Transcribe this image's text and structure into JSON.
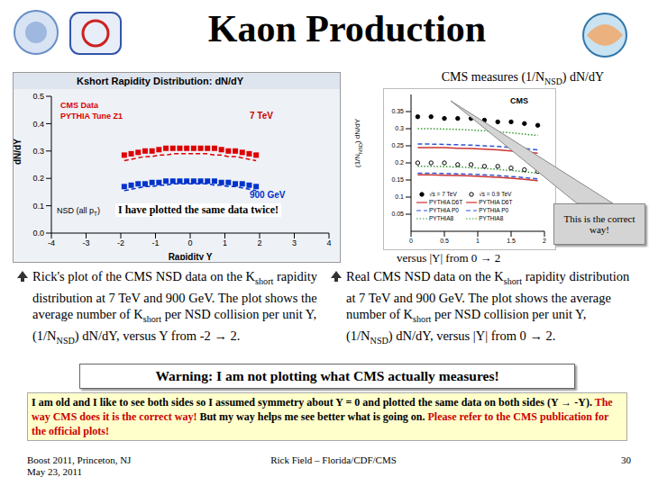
{
  "slide": {
    "title": "Kaon Production",
    "top_right": [
      {
        "t": "CMS measures (1/N"
      },
      {
        "sub": "NSD"
      },
      {
        "t": ") dN/dY"
      }
    ],
    "overlay_note": "I have plotted the same data twice!",
    "callout": "This is the correct way!",
    "right_caption": "versus |Y| from 0 → 2",
    "bullets": [
      [
        {
          "t": "Rick's plot of the CMS NSD data on the K"
        },
        {
          "sub": "short"
        },
        {
          "t": " rapidity distribution at 7 TeV and 900 GeV. The plot shows the average number of K"
        },
        {
          "sub": "short"
        },
        {
          "t": " per NSD collision per unit Y, (1/N"
        },
        {
          "sub": "NSD"
        },
        {
          "t": ") dN/dY, versus Y from -2 → 2."
        }
      ],
      [
        {
          "t": "Real CMS NSD data on the K"
        },
        {
          "sub": "short"
        },
        {
          "t": " rapidity distribution at 7 TeV and 900 GeV. The plot shows the average number of K"
        },
        {
          "sub": "short"
        },
        {
          "t": " per NSD collision per unit Y, (1/N"
        },
        {
          "sub": "NSD"
        },
        {
          "t": ") dN/dY, versus |Y| from 0 → 2."
        }
      ]
    ],
    "warning": "Warning: I am not plotting what CMS actually measures!",
    "note": [
      {
        "t": "I am old and I like to see both sides so I assumed symmetry about Y = 0 and plotted the same data on both sides (Y → -Y). ",
        "color": "#000000"
      },
      {
        "t": "The way CMS does it is the correct way! ",
        "color": "#cc0000"
      },
      {
        "t": "But my way helps me see better what is going on. ",
        "color": "#000000"
      },
      {
        "t": "Please refer to the CMS publication for the official plots!",
        "color": "#cc0000"
      }
    ],
    "footer": {
      "left": [
        "Boost 2011, Princeton, NJ",
        "May 23, 2011"
      ],
      "center": "Rick Field – Florida/CDF/CMS",
      "page": 30
    }
  },
  "chart_data": [
    {
      "type": "line",
      "title": "Kshort Rapidity Distribution: dN/dY",
      "x_label": "Rapidity Y",
      "y_label": "dN/dY",
      "xlim": [
        -4,
        4
      ],
      "xticks": [
        -4,
        -3,
        -2,
        -1,
        0,
        1,
        2,
        3,
        4
      ],
      "ylim": [
        0,
        0.5
      ],
      "yticks": [
        {
          "value": 0,
          "label": "0.0"
        },
        0.1,
        0.2,
        0.3,
        0.4,
        0.5
      ],
      "grid": false,
      "annotations": [
        {
          "text": [
            {
              "t": "7 TeV"
            }
          ],
          "color": "#cc0000"
        },
        {
          "text": [
            {
              "t": "900 GeV"
            }
          ],
          "color": "#0033cc"
        },
        {
          "text": [
            {
              "t": "NSD (all p"
            },
            {
              "sub": "T"
            },
            {
              "t": ")"
            }
          ],
          "color": "#000000"
        }
      ],
      "x": [
        -1.9,
        -1.7,
        -1.5,
        -1.3,
        -1.1,
        -0.9,
        -0.7,
        -0.5,
        -0.3,
        -0.1,
        0.1,
        0.3,
        0.5,
        0.7,
        0.9,
        1.1,
        1.3,
        1.5,
        1.7,
        1.9
      ],
      "series": [
        {
          "name": "CMS Data",
          "type": "scatter",
          "marker": "square",
          "color": "#dd0000",
          "values": [
            0.285,
            0.29,
            0.295,
            0.3,
            0.3,
            0.305,
            0.31,
            0.31,
            0.31,
            0.31,
            0.31,
            0.31,
            0.31,
            0.31,
            0.305,
            0.3,
            0.3,
            0.295,
            0.29,
            0.285
          ]
        },
        {
          "name": "PYTHIA Tune Z1",
          "type": "line",
          "line_style": "dashed",
          "color": "#dd0000",
          "values": [
            0.265,
            0.27,
            0.275,
            0.28,
            0.28,
            0.285,
            0.285,
            0.29,
            0.29,
            0.29,
            0.29,
            0.29,
            0.29,
            0.285,
            0.285,
            0.28,
            0.28,
            0.275,
            0.27,
            0.265
          ]
        },
        {
          "name": "CMS Data",
          "type": "scatter",
          "marker": "square",
          "color": "#0033cc",
          "values": [
            0.17,
            0.175,
            0.18,
            0.18,
            0.185,
            0.185,
            0.19,
            0.19,
            0.19,
            0.19,
            0.19,
            0.19,
            0.19,
            0.19,
            0.185,
            0.185,
            0.18,
            0.18,
            0.175,
            0.17
          ]
        },
        {
          "name": "PYTHIA Tune Z1",
          "type": "line",
          "line_style": "dashed",
          "color": "#0033cc",
          "values": [
            0.155,
            0.16,
            0.165,
            0.17,
            0.17,
            0.175,
            0.175,
            0.18,
            0.18,
            0.18,
            0.18,
            0.18,
            0.18,
            0.175,
            0.175,
            0.17,
            0.17,
            0.165,
            0.16,
            0.155
          ]
        }
      ]
    },
    {
      "type": "line",
      "y_label": [
        {
          "t": "(1/N"
        },
        {
          "sub": "NSD"
        },
        {
          "t": ") dN/dY"
        }
      ],
      "xlim": [
        0,
        2
      ],
      "xticks": [
        0,
        0.5,
        1,
        1.5,
        2
      ],
      "ylim": [
        0,
        0.4
      ],
      "yticks": [
        0.05,
        0.1,
        0.15,
        0.2,
        0.25,
        0.3,
        0.35
      ],
      "grid": false,
      "annotations": [
        {
          "text": [
            {
              "t": "CMS"
            }
          ],
          "color": "#000000"
        }
      ],
      "x": [
        0.1,
        0.3,
        0.5,
        0.7,
        0.9,
        1.1,
        1.3,
        1.5,
        1.7,
        1.9
      ],
      "series": [
        {
          "name": "√s = 7 TeV",
          "type": "scatter",
          "marker": "circle",
          "color": "#000000",
          "values": [
            0.335,
            0.335,
            0.33,
            0.33,
            0.33,
            0.325,
            0.32,
            0.32,
            0.315,
            0.31
          ]
        },
        {
          "name": "PYTHIA D6T",
          "type": "line",
          "line_style": "solid",
          "color": "#cc3333",
          "values": [
            0.245,
            0.245,
            0.245,
            0.243,
            0.242,
            0.24,
            0.238,
            0.235,
            0.232,
            0.228
          ]
        },
        {
          "name": "PYTHIA P0",
          "type": "line",
          "line_style": "dashed",
          "color": "#3355cc",
          "values": [
            0.255,
            0.255,
            0.254,
            0.253,
            0.252,
            0.25,
            0.248,
            0.245,
            0.242,
            0.238
          ]
        },
        {
          "name": "PYTHIA8",
          "type": "line",
          "line_style": "dotted",
          "color": "#339933",
          "values": [
            0.3,
            0.3,
            0.299,
            0.298,
            0.296,
            0.294,
            0.291,
            0.288,
            0.284,
            0.28
          ]
        },
        {
          "name": "√s = 0.9 TeV",
          "type": "scatter",
          "marker": "open_circle",
          "color": "#000000",
          "values": [
            0.2,
            0.2,
            0.2,
            0.195,
            0.195,
            0.19,
            0.19,
            0.185,
            0.18,
            0.175
          ]
        },
        {
          "name": "PYTHIA D6T",
          "type": "line",
          "line_style": "solid",
          "color": "#cc3333",
          "values": [
            0.165,
            0.165,
            0.164,
            0.163,
            0.162,
            0.16,
            0.158,
            0.155,
            0.152,
            0.148
          ]
        },
        {
          "name": "PYTHIA P0",
          "type": "line",
          "line_style": "dashed",
          "color": "#3355cc",
          "values": [
            0.17,
            0.17,
            0.169,
            0.168,
            0.167,
            0.165,
            0.163,
            0.16,
            0.157,
            0.153
          ]
        },
        {
          "name": "PYTHIA8",
          "type": "line",
          "line_style": "dotted",
          "color": "#339933",
          "values": [
            0.19,
            0.19,
            0.189,
            0.188,
            0.186,
            0.184,
            0.181,
            0.178,
            0.174,
            0.17
          ]
        }
      ]
    }
  ]
}
